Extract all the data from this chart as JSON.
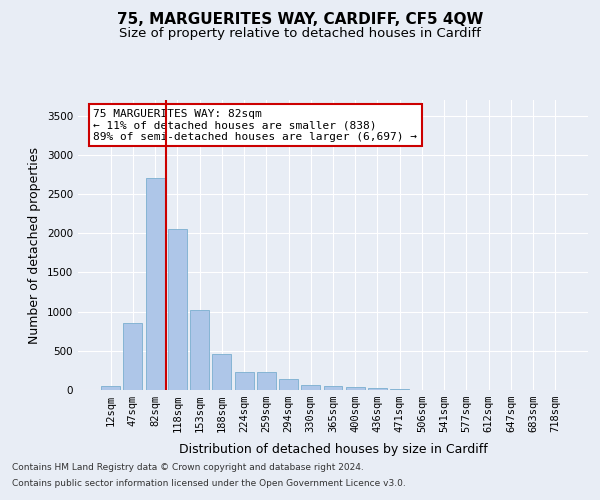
{
  "title": "75, MARGUERITES WAY, CARDIFF, CF5 4QW",
  "subtitle": "Size of property relative to detached houses in Cardiff",
  "xlabel": "Distribution of detached houses by size in Cardiff",
  "ylabel": "Number of detached properties",
  "categories": [
    "12sqm",
    "47sqm",
    "82sqm",
    "118sqm",
    "153sqm",
    "188sqm",
    "224sqm",
    "259sqm",
    "294sqm",
    "330sqm",
    "365sqm",
    "400sqm",
    "436sqm",
    "471sqm",
    "506sqm",
    "541sqm",
    "577sqm",
    "612sqm",
    "647sqm",
    "683sqm",
    "718sqm"
  ],
  "values": [
    55,
    850,
    2700,
    2060,
    1020,
    455,
    230,
    230,
    135,
    65,
    55,
    35,
    20,
    10,
    5,
    5,
    5,
    0,
    0,
    0,
    0
  ],
  "bar_color": "#aec6e8",
  "bar_edge_color": "#7aaed0",
  "highlight_index": 2,
  "highlight_color": "#cc0000",
  "ylim": [
    0,
    3700
  ],
  "yticks": [
    0,
    500,
    1000,
    1500,
    2000,
    2500,
    3000,
    3500
  ],
  "annotation_text": "75 MARGUERITES WAY: 82sqm\n← 11% of detached houses are smaller (838)\n89% of semi-detached houses are larger (6,697) →",
  "annotation_box_color": "#ffffff",
  "annotation_box_edge_color": "#cc0000",
  "footer_line1": "Contains HM Land Registry data © Crown copyright and database right 2024.",
  "footer_line2": "Contains public sector information licensed under the Open Government Licence v3.0.",
  "background_color": "#e8edf5",
  "grid_color": "#ffffff",
  "title_fontsize": 11,
  "subtitle_fontsize": 9.5,
  "axis_label_fontsize": 9,
  "tick_fontsize": 7.5,
  "annotation_fontsize": 8,
  "footer_fontsize": 6.5
}
